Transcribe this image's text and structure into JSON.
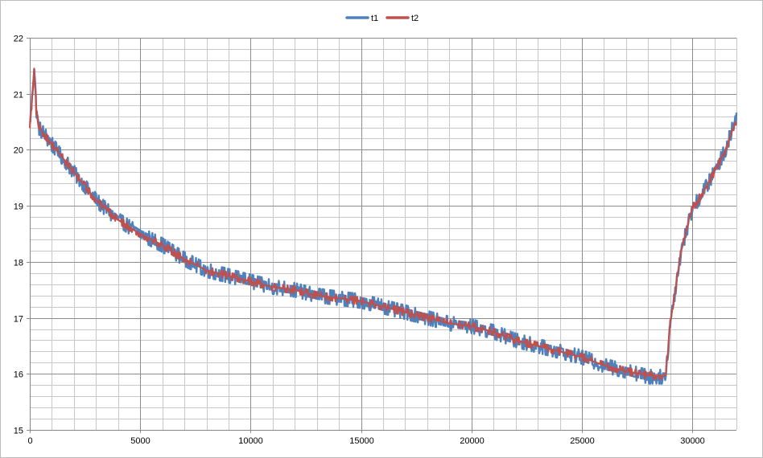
{
  "chart_data": {
    "type": "line",
    "title": "",
    "xlabel": "",
    "ylabel": "",
    "xlim": [
      0,
      32000
    ],
    "ylim": [
      15,
      22
    ],
    "x_ticks": [
      0,
      5000,
      10000,
      15000,
      20000,
      25000,
      30000
    ],
    "x_minor_step": 1000,
    "y_ticks": [
      15,
      16,
      17,
      18,
      19,
      20,
      21,
      22
    ],
    "y_minor_step": 0.2,
    "grid": true,
    "legend_position": "top-center",
    "series": [
      {
        "name": "t1",
        "color": "#4f81bd",
        "noise": 0.13,
        "x": [
          0,
          100,
          200,
          300,
          400,
          1000,
          2000,
          3000,
          4000,
          5000,
          6000,
          7000,
          8000,
          9000,
          10000,
          11000,
          12000,
          13000,
          14000,
          15000,
          16000,
          17000,
          18000,
          19000,
          20000,
          21000,
          22000,
          23000,
          24000,
          25000,
          26000,
          27000,
          28000,
          28800,
          29000,
          29500,
          30000,
          30500,
          31000,
          31500,
          32000
        ],
        "y": [
          20.45,
          20.9,
          21.5,
          20.7,
          20.4,
          20.1,
          19.6,
          19.1,
          18.75,
          18.5,
          18.3,
          18.05,
          17.85,
          17.75,
          17.65,
          17.55,
          17.5,
          17.4,
          17.35,
          17.3,
          17.2,
          17.1,
          17.0,
          16.9,
          16.85,
          16.75,
          16.6,
          16.5,
          16.4,
          16.3,
          16.15,
          16.05,
          15.95,
          15.95,
          16.9,
          18.2,
          18.95,
          19.25,
          19.6,
          20.0,
          20.6
        ]
      },
      {
        "name": "t2",
        "color": "#c0504d",
        "noise": 0.045,
        "x": [
          0,
          100,
          200,
          300,
          400,
          1000,
          2000,
          3000,
          4000,
          5000,
          6000,
          7000,
          8000,
          9000,
          10000,
          11000,
          12000,
          13000,
          14000,
          15000,
          16000,
          17000,
          18000,
          19000,
          20000,
          21000,
          22000,
          23000,
          24000,
          25000,
          26000,
          27000,
          28000,
          28800,
          29000,
          29500,
          30000,
          30500,
          31000,
          31500,
          32000
        ],
        "y": [
          20.45,
          20.9,
          21.45,
          20.7,
          20.4,
          20.1,
          19.6,
          19.1,
          18.75,
          18.5,
          18.3,
          18.05,
          17.85,
          17.75,
          17.65,
          17.55,
          17.5,
          17.4,
          17.35,
          17.3,
          17.2,
          17.1,
          17.0,
          16.9,
          16.85,
          16.75,
          16.6,
          16.5,
          16.4,
          16.3,
          16.15,
          16.05,
          15.97,
          15.97,
          16.9,
          18.2,
          18.95,
          19.25,
          19.6,
          20.0,
          20.55
        ]
      }
    ]
  }
}
